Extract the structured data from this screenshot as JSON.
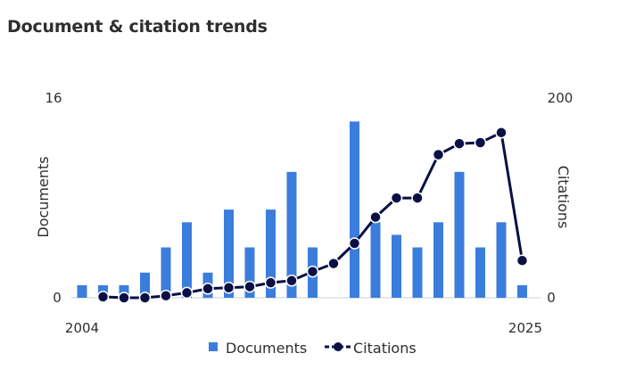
{
  "header": {
    "title": "Document & citation trends"
  },
  "chart_data": {
    "type": "bar+line",
    "title": "Document & citation trends",
    "x": [
      2004,
      2005,
      2006,
      2007,
      2008,
      2009,
      2010,
      2011,
      2012,
      2013,
      2014,
      2015,
      2016,
      2017,
      2018,
      2019,
      2020,
      2021,
      2022,
      2023,
      2024,
      2025
    ],
    "x_tick_labels": [
      "2004",
      "2025"
    ],
    "series": [
      {
        "name": "Documents",
        "kind": "bar",
        "axis": "left",
        "color": "#3b7ddd",
        "values": [
          1,
          1,
          1,
          2,
          4,
          6,
          2,
          7,
          4,
          7,
          10,
          4,
          0,
          14,
          6,
          5,
          4,
          6,
          10,
          4,
          6,
          1
        ]
      },
      {
        "name": "Citations",
        "kind": "line",
        "axis": "right",
        "color": "#0a0f45",
        "x": [
          2005,
          2006,
          2007,
          2008,
          2009,
          2010,
          2011,
          2012,
          2013,
          2014,
          2015,
          2016,
          2017,
          2018,
          2019,
          2020,
          2021,
          2022,
          2023,
          2024,
          2025
        ],
        "values": [
          1,
          0,
          0,
          2,
          5,
          9,
          10,
          11,
          15,
          17,
          26,
          34,
          54,
          80,
          99,
          99,
          142,
          153,
          154,
          164,
          37
        ]
      }
    ],
    "y_left": {
      "label": "Documents",
      "ticks": [
        "0",
        "16"
      ],
      "min": 0,
      "max": 16
    },
    "y_right": {
      "label": "Citations",
      "ticks": [
        "0",
        "200"
      ],
      "min": 0,
      "max": 200
    },
    "grid": false,
    "legend": {
      "position": "bottom",
      "items": [
        "Documents",
        "Citations"
      ]
    }
  }
}
